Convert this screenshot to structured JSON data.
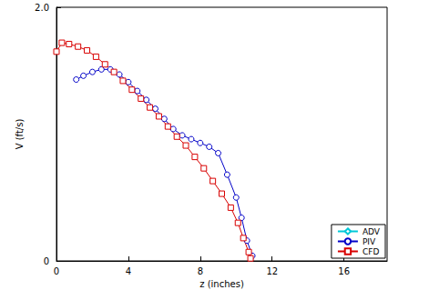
{
  "chart_data": {
    "type": "line",
    "x_label": "z (inches)",
    "y_label": "V (ft/s)",
    "xlim": [
      0,
      18.4
    ],
    "xticks": [
      0,
      4,
      8,
      12,
      16
    ],
    "ylim": [
      0,
      2
    ],
    "yticks": [
      0,
      {
        "value": 2,
        "label": "2.0"
      }
    ],
    "grid": false,
    "legend": "lower right",
    "series": [
      {
        "name": "ADV",
        "color": "#00c8d8",
        "marker": "diamond",
        "x": [],
        "values": []
      },
      {
        "name": "PIV",
        "color": "#0000c8",
        "marker": "circle",
        "x": [
          1.1,
          1.5,
          2,
          2.5,
          3,
          3.5,
          4,
          4.5,
          5,
          5.5,
          6,
          6.5,
          7,
          7.5,
          8,
          8.5,
          9,
          9.5,
          10,
          10.3,
          10.6,
          10.9
        ],
        "values": [
          1.43,
          1.46,
          1.49,
          1.51,
          1.51,
          1.47,
          1.41,
          1.34,
          1.27,
          1.2,
          1.12,
          1.04,
          0.99,
          0.96,
          0.93,
          0.9,
          0.85,
          0.68,
          0.5,
          0.34,
          0.16,
          0.04
        ]
      },
      {
        "name": "CFD",
        "color": "#d80000",
        "marker": "square",
        "x": [
          0,
          0.3,
          0.7,
          1.2,
          1.7,
          2.2,
          2.7,
          3.2,
          3.7,
          4.2,
          4.7,
          5.2,
          5.7,
          6.2,
          6.7,
          7.2,
          7.7,
          8.2,
          8.7,
          9.2,
          9.7,
          10.1,
          10.4,
          10.7,
          10.8
        ],
        "values": [
          1.65,
          1.72,
          1.71,
          1.69,
          1.66,
          1.61,
          1.55,
          1.49,
          1.42,
          1.35,
          1.28,
          1.21,
          1.14,
          1.06,
          0.98,
          0.91,
          0.82,
          0.73,
          0.63,
          0.53,
          0.42,
          0.3,
          0.18,
          0.07,
          0.02
        ]
      }
    ]
  }
}
